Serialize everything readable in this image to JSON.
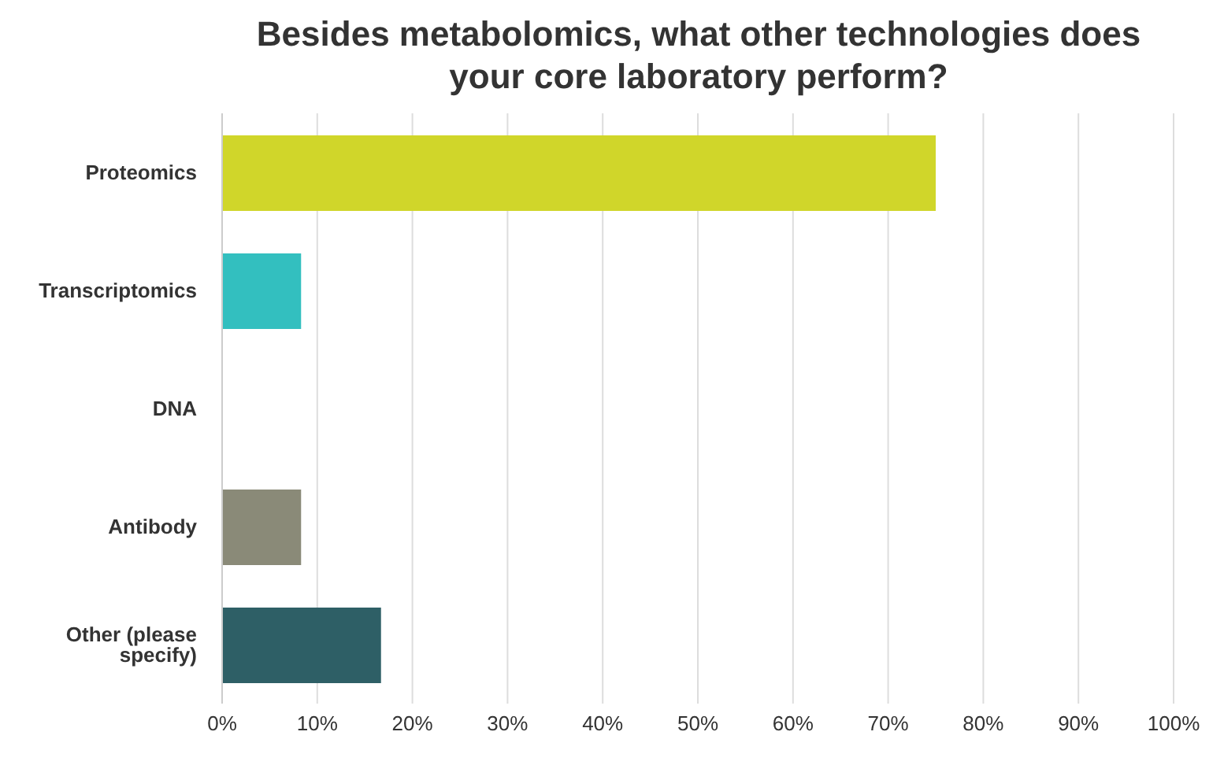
{
  "chart_data": {
    "type": "bar",
    "orientation": "horizontal",
    "title": "Besides metabolomics, what other technologies does your core laboratory perform?",
    "categories": [
      "Proteomics",
      "Transcriptomics",
      "DNA",
      "Antibody",
      "Other (please specify)"
    ],
    "values": [
      75,
      8.3,
      0,
      8.3,
      16.7
    ],
    "colors": [
      "#d0d62a",
      "#33bfbf",
      "#ffffff",
      "#8a8a78",
      "#2e5f66"
    ],
    "xlim": [
      0,
      100
    ],
    "xticks": [
      {
        "value": 0,
        "label": "0%"
      },
      {
        "value": 10,
        "label": "10%"
      },
      {
        "value": 20,
        "label": "20%"
      },
      {
        "value": 30,
        "label": "30%"
      },
      {
        "value": 40,
        "label": "40%"
      },
      {
        "value": 50,
        "label": "50%"
      },
      {
        "value": 60,
        "label": "60%"
      },
      {
        "value": 70,
        "label": "70%"
      },
      {
        "value": 80,
        "label": "80%"
      },
      {
        "value": 90,
        "label": "90%"
      },
      {
        "value": 100,
        "label": "100%"
      }
    ],
    "grid": "x",
    "legend": false
  }
}
